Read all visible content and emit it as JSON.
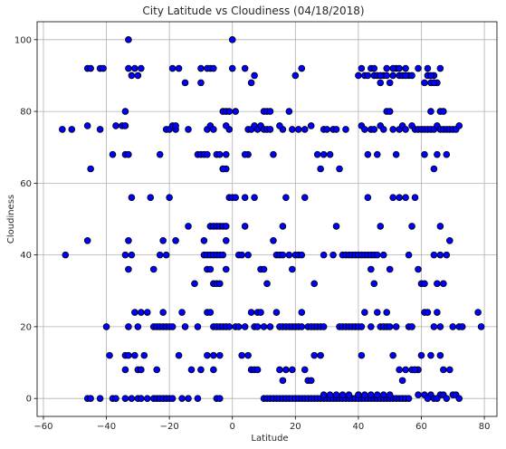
{
  "chart_data": {
    "type": "scatter",
    "title": "City Latitude vs Cloudiness (04/18/2018)",
    "xlabel": "Latitude",
    "ylabel": "Cloudiness",
    "xlim": [
      -62,
      84
    ],
    "ylim": [
      -5,
      105
    ],
    "xticks": [
      -60,
      -40,
      -20,
      0,
      20,
      40,
      60,
      80
    ],
    "yticks": [
      0,
      20,
      40,
      60,
      80,
      100
    ],
    "grid": true,
    "marker_color": "#0000ff",
    "marker_edge": "#000000",
    "points": [
      [
        -54,
        75
      ],
      [
        -51,
        75
      ],
      [
        -53,
        40
      ],
      [
        -46,
        92
      ],
      [
        -45,
        92
      ],
      [
        -42,
        92
      ],
      [
        -41,
        92
      ],
      [
        -46,
        76
      ],
      [
        -45,
        64
      ],
      [
        -42,
        75
      ],
      [
        -46,
        44
      ],
      [
        -46,
        0
      ],
      [
        -45,
        0
      ],
      [
        -42,
        0
      ],
      [
        -40,
        20
      ],
      [
        -39,
        12
      ],
      [
        -38,
        0
      ],
      [
        -37,
        0
      ],
      [
        -38,
        68
      ],
      [
        -37,
        76
      ],
      [
        -35,
        76
      ],
      [
        -34,
        80
      ],
      [
        -34,
        76
      ],
      [
        -34,
        68
      ],
      [
        -33,
        68
      ],
      [
        -33,
        100
      ],
      [
        -33,
        92
      ],
      [
        -31,
        92
      ],
      [
        -32,
        90
      ],
      [
        -30,
        90
      ],
      [
        -29,
        92
      ],
      [
        -34,
        40
      ],
      [
        -33,
        44
      ],
      [
        -32,
        40
      ],
      [
        -33,
        36
      ],
      [
        -32,
        56
      ],
      [
        -34,
        12
      ],
      [
        -33,
        12
      ],
      [
        -31,
        12
      ],
      [
        -34,
        8
      ],
      [
        -30,
        8
      ],
      [
        -29,
        8
      ],
      [
        -28,
        12
      ],
      [
        -31,
        24
      ],
      [
        -29,
        24
      ],
      [
        -27,
        24
      ],
      [
        -33,
        20
      ],
      [
        -30,
        20
      ],
      [
        -32,
        0
      ],
      [
        -34,
        0
      ],
      [
        -30,
        0
      ],
      [
        -29,
        0
      ],
      [
        -27,
        0
      ],
      [
        -25,
        0
      ],
      [
        -24,
        0
      ],
      [
        -23,
        0
      ],
      [
        -22,
        0
      ],
      [
        -21,
        0
      ],
      [
        -20,
        0
      ],
      [
        -19,
        0
      ],
      [
        -25,
        20
      ],
      [
        -24,
        20
      ],
      [
        -23,
        20
      ],
      [
        -22,
        20
      ],
      [
        -21,
        20
      ],
      [
        -20,
        20
      ],
      [
        -19,
        20
      ],
      [
        -26,
        56
      ],
      [
        -25,
        36
      ],
      [
        -23,
        40
      ],
      [
        -22,
        44
      ],
      [
        -21,
        40
      ],
      [
        -20,
        56
      ],
      [
        -23,
        68
      ],
      [
        -21,
        75
      ],
      [
        -20,
        75
      ],
      [
        -19,
        76
      ],
      [
        -18,
        75
      ],
      [
        -18,
        76
      ],
      [
        -19,
        92
      ],
      [
        -17,
        92
      ],
      [
        -15,
        88
      ],
      [
        -14,
        75
      ],
      [
        -18,
        44
      ],
      [
        -16,
        24
      ],
      [
        -15,
        20
      ],
      [
        -14,
        48
      ],
      [
        -24,
        8
      ],
      [
        -22,
        24
      ],
      [
        -17,
        12
      ],
      [
        -16,
        0
      ],
      [
        -14,
        0
      ],
      [
        -13,
        8
      ],
      [
        -12,
        32
      ],
      [
        -11,
        20
      ],
      [
        -10,
        8
      ],
      [
        -11,
        0
      ],
      [
        -11,
        68
      ],
      [
        -10,
        68
      ],
      [
        -9,
        68
      ],
      [
        -8,
        68
      ],
      [
        -8,
        75
      ],
      [
        -7,
        76
      ],
      [
        -6,
        75
      ],
      [
        -5,
        68
      ],
      [
        -4,
        68
      ],
      [
        -3,
        64
      ],
      [
        -2,
        64
      ],
      [
        -2,
        68
      ],
      [
        -1,
        75
      ],
      [
        -10,
        92
      ],
      [
        -8,
        92
      ],
      [
        -7,
        92
      ],
      [
        -6,
        92
      ],
      [
        -10,
        88
      ],
      [
        -9,
        40
      ],
      [
        -8,
        40
      ],
      [
        -7,
        40
      ],
      [
        -6,
        40
      ],
      [
        -5,
        40
      ],
      [
        -4,
        40
      ],
      [
        -3,
        40
      ],
      [
        -9,
        44
      ],
      [
        -8,
        36
      ],
      [
        -7,
        36
      ],
      [
        -6,
        32
      ],
      [
        -5,
        32
      ],
      [
        -4,
        32
      ],
      [
        -7,
        48
      ],
      [
        -6,
        48
      ],
      [
        -5,
        48
      ],
      [
        -4,
        48
      ],
      [
        -3,
        48
      ],
      [
        -8,
        24
      ],
      [
        -7,
        24
      ],
      [
        -6,
        20
      ],
      [
        -5,
        20
      ],
      [
        -4,
        20
      ],
      [
        -3,
        20
      ],
      [
        -2,
        20
      ],
      [
        -1,
        20
      ],
      [
        -8,
        12
      ],
      [
        -6,
        12
      ],
      [
        -4,
        12
      ],
      [
        -6,
        8
      ],
      [
        -5,
        0
      ],
      [
        -4,
        0
      ],
      [
        -2,
        48
      ],
      [
        -2,
        36
      ],
      [
        -2,
        44
      ],
      [
        -3,
        64
      ],
      [
        -2,
        76
      ],
      [
        -3,
        80
      ],
      [
        -2,
        80
      ],
      [
        -1,
        80
      ],
      [
        -1,
        56
      ],
      [
        0,
        56
      ],
      [
        0,
        100
      ],
      [
        0,
        92
      ],
      [
        1,
        80
      ],
      [
        1,
        56
      ],
      [
        2,
        40
      ],
      [
        3,
        40
      ],
      [
        4,
        48
      ],
      [
        4,
        56
      ],
      [
        5,
        40
      ],
      [
        5,
        68
      ],
      [
        4,
        68
      ],
      [
        4,
        92
      ],
      [
        6,
        88
      ],
      [
        7,
        90
      ],
      [
        5,
        75
      ],
      [
        6,
        75
      ],
      [
        7,
        76
      ],
      [
        8,
        75
      ],
      [
        9,
        76
      ],
      [
        10,
        80
      ],
      [
        11,
        80
      ],
      [
        12,
        80
      ],
      [
        10,
        75
      ],
      [
        11,
        75
      ],
      [
        12,
        75
      ],
      [
        13,
        68
      ],
      [
        6,
        24
      ],
      [
        8,
        24
      ],
      [
        9,
        24
      ],
      [
        7,
        20
      ],
      [
        7,
        56
      ],
      [
        9,
        36
      ],
      [
        10,
        36
      ],
      [
        11,
        32
      ],
      [
        13,
        44
      ],
      [
        14,
        40
      ],
      [
        15,
        40
      ],
      [
        6,
        8
      ],
      [
        7,
        8
      ],
      [
        8,
        8
      ],
      [
        5,
        12
      ],
      [
        3,
        12
      ],
      [
        1,
        20
      ],
      [
        2,
        20
      ],
      [
        4,
        20
      ],
      [
        8,
        20
      ],
      [
        10,
        20
      ],
      [
        12,
        20
      ],
      [
        14,
        24
      ],
      [
        15,
        20
      ],
      [
        16,
        20
      ],
      [
        17,
        20
      ],
      [
        18,
        20
      ],
      [
        19,
        20
      ],
      [
        20,
        20
      ],
      [
        21,
        20
      ],
      [
        22,
        20
      ],
      [
        16,
        48
      ],
      [
        17,
        56
      ],
      [
        16,
        40
      ],
      [
        18,
        40
      ],
      [
        19,
        36
      ],
      [
        20,
        40
      ],
      [
        21,
        40
      ],
      [
        22,
        40
      ],
      [
        23,
        56
      ],
      [
        19,
        75
      ],
      [
        20,
        90
      ],
      [
        22,
        92
      ],
      [
        18,
        80
      ],
      [
        16,
        75
      ],
      [
        15,
        76
      ],
      [
        21,
        75
      ],
      [
        23,
        75
      ],
      [
        25,
        76
      ],
      [
        27,
        68
      ],
      [
        28,
        64
      ],
      [
        29,
        75
      ],
      [
        30,
        75
      ],
      [
        32,
        75
      ],
      [
        33,
        75
      ],
      [
        34,
        64
      ],
      [
        36,
        75
      ],
      [
        29,
        68
      ],
      [
        31,
        68
      ],
      [
        22,
        24
      ],
      [
        24,
        20
      ],
      [
        25,
        20
      ],
      [
        26,
        20
      ],
      [
        27,
        20
      ],
      [
        28,
        20
      ],
      [
        29,
        20
      ],
      [
        26,
        12
      ],
      [
        28,
        12
      ],
      [
        23,
        8
      ],
      [
        24,
        5
      ],
      [
        25,
        5
      ],
      [
        15,
        8
      ],
      [
        17,
        8
      ],
      [
        16,
        5
      ],
      [
        19,
        8
      ],
      [
        10,
        0
      ],
      [
        11,
        0
      ],
      [
        12,
        0
      ],
      [
        13,
        0
      ],
      [
        14,
        0
      ],
      [
        15,
        0
      ],
      [
        16,
        0
      ],
      [
        17,
        0
      ],
      [
        18,
        0
      ],
      [
        19,
        0
      ],
      [
        20,
        0
      ],
      [
        21,
        0
      ],
      [
        22,
        0
      ],
      [
        23,
        0
      ],
      [
        24,
        0
      ],
      [
        25,
        0
      ],
      [
        26,
        0
      ],
      [
        27,
        0
      ],
      [
        28,
        0
      ],
      [
        29,
        0
      ],
      [
        30,
        0
      ],
      [
        31,
        0
      ],
      [
        32,
        0
      ],
      [
        33,
        0
      ],
      [
        34,
        0
      ],
      [
        35,
        0
      ],
      [
        36,
        0
      ],
      [
        37,
        0
      ],
      [
        38,
        0
      ],
      [
        39,
        0
      ],
      [
        40,
        0
      ],
      [
        41,
        0
      ],
      [
        42,
        0
      ],
      [
        43,
        0
      ],
      [
        44,
        0
      ],
      [
        45,
        0
      ],
      [
        46,
        0
      ],
      [
        47,
        0
      ],
      [
        48,
        0
      ],
      [
        49,
        0
      ],
      [
        50,
        0
      ],
      [
        51,
        0
      ],
      [
        52,
        0
      ],
      [
        53,
        0
      ],
      [
        54,
        0
      ],
      [
        55,
        0
      ],
      [
        56,
        0
      ],
      [
        29,
        1
      ],
      [
        31,
        1
      ],
      [
        33,
        1
      ],
      [
        35,
        1
      ],
      [
        37,
        1
      ],
      [
        40,
        1
      ],
      [
        42,
        1
      ],
      [
        44,
        1
      ],
      [
        46,
        1
      ],
      [
        48,
        1
      ],
      [
        50,
        1
      ],
      [
        26,
        32
      ],
      [
        29,
        40
      ],
      [
        32,
        40
      ],
      [
        33,
        48
      ],
      [
        34,
        20
      ],
      [
        35,
        20
      ],
      [
        36,
        20
      ],
      [
        37,
        20
      ],
      [
        38,
        20
      ],
      [
        39,
        20
      ],
      [
        40,
        20
      ],
      [
        41,
        20
      ],
      [
        35,
        40
      ],
      [
        36,
        40
      ],
      [
        37,
        40
      ],
      [
        38,
        40
      ],
      [
        39,
        40
      ],
      [
        40,
        40
      ],
      [
        41,
        40
      ],
      [
        42,
        40
      ],
      [
        43,
        40
      ],
      [
        44,
        40
      ],
      [
        45,
        40
      ],
      [
        46,
        40
      ],
      [
        41,
        12
      ],
      [
        42,
        24
      ],
      [
        44,
        20
      ],
      [
        44,
        36
      ],
      [
        45,
        32
      ],
      [
        46,
        24
      ],
      [
        47,
        20
      ],
      [
        48,
        20
      ],
      [
        49,
        20
      ],
      [
        50,
        20
      ],
      [
        47,
        48
      ],
      [
        48,
        40
      ],
      [
        49,
        24
      ],
      [
        50,
        36
      ],
      [
        52,
        20
      ],
      [
        51,
        12
      ],
      [
        53,
        8
      ],
      [
        54,
        5
      ],
      [
        55,
        8
      ],
      [
        56,
        20
      ],
      [
        57,
        20
      ],
      [
        58,
        8
      ],
      [
        59,
        8
      ],
      [
        60,
        12
      ],
      [
        61,
        24
      ],
      [
        63,
        12
      ],
      [
        64,
        20
      ],
      [
        65,
        24
      ],
      [
        66,
        20
      ],
      [
        51,
        56
      ],
      [
        53,
        56
      ],
      [
        55,
        56
      ],
      [
        56,
        40
      ],
      [
        57,
        48
      ],
      [
        58,
        56
      ],
      [
        59,
        36
      ],
      [
        60,
        32
      ],
      [
        61,
        32
      ],
      [
        62,
        24
      ],
      [
        64,
        40
      ],
      [
        65,
        32
      ],
      [
        66,
        40
      ],
      [
        67,
        32
      ],
      [
        68,
        40
      ],
      [
        69,
        44
      ],
      [
        66,
        48
      ],
      [
        40,
        90
      ],
      [
        41,
        92
      ],
      [
        42,
        90
      ],
      [
        43,
        90
      ],
      [
        44,
        92
      ],
      [
        45,
        90
      ],
      [
        46,
        90
      ],
      [
        47,
        88
      ],
      [
        48,
        90
      ],
      [
        49,
        90
      ],
      [
        50,
        88
      ],
      [
        51,
        90
      ],
      [
        52,
        92
      ],
      [
        53,
        90
      ],
      [
        54,
        90
      ],
      [
        55,
        92
      ],
      [
        56,
        90
      ],
      [
        57,
        90
      ],
      [
        59,
        92
      ],
      [
        61,
        88
      ],
      [
        62,
        90
      ],
      [
        63,
        88
      ],
      [
        64,
        90
      ],
      [
        65,
        88
      ],
      [
        66,
        92
      ],
      [
        45,
        92
      ],
      [
        47,
        90
      ],
      [
        49,
        92
      ],
      [
        51,
        92
      ],
      [
        53,
        92
      ],
      [
        55,
        90
      ],
      [
        62,
        92
      ],
      [
        63,
        90
      ],
      [
        64,
        88
      ],
      [
        41,
        76
      ],
      [
        42,
        75
      ],
      [
        43,
        68
      ],
      [
        44,
        75
      ],
      [
        45,
        75
      ],
      [
        46,
        68
      ],
      [
        47,
        76
      ],
      [
        48,
        75
      ],
      [
        49,
        80
      ],
      [
        50,
        80
      ],
      [
        51,
        75
      ],
      [
        52,
        68
      ],
      [
        53,
        75
      ],
      [
        54,
        76
      ],
      [
        55,
        75
      ],
      [
        57,
        76
      ],
      [
        58,
        75
      ],
      [
        59,
        75
      ],
      [
        60,
        75
      ],
      [
        61,
        75
      ],
      [
        62,
        75
      ],
      [
        63,
        75
      ],
      [
        64,
        75
      ],
      [
        65,
        76
      ],
      [
        66,
        75
      ],
      [
        67,
        75
      ],
      [
        68,
        75
      ],
      [
        69,
        75
      ],
      [
        70,
        75
      ],
      [
        71,
        75
      ],
      [
        72,
        76
      ],
      [
        61,
        68
      ],
      [
        63,
        80
      ],
      [
        64,
        64
      ],
      [
        65,
        68
      ],
      [
        66,
        80
      ],
      [
        67,
        80
      ],
      [
        68,
        68
      ],
      [
        40,
        1
      ],
      [
        43,
        56
      ],
      [
        57,
        8
      ],
      [
        58,
        8
      ],
      [
        59,
        1
      ],
      [
        61,
        1
      ],
      [
        63,
        1
      ],
      [
        64,
        0
      ],
      [
        66,
        1
      ],
      [
        67,
        1
      ],
      [
        68,
        0
      ],
      [
        70,
        1
      ],
      [
        71,
        1
      ],
      [
        72,
        0
      ],
      [
        66,
        12
      ],
      [
        67,
        8
      ],
      [
        69,
        8
      ],
      [
        70,
        20
      ],
      [
        72,
        20
      ],
      [
        73,
        20
      ],
      [
        78,
        24
      ],
      [
        79,
        20
      ],
      [
        65,
        0
      ],
      [
        62,
        0
      ]
    ]
  }
}
